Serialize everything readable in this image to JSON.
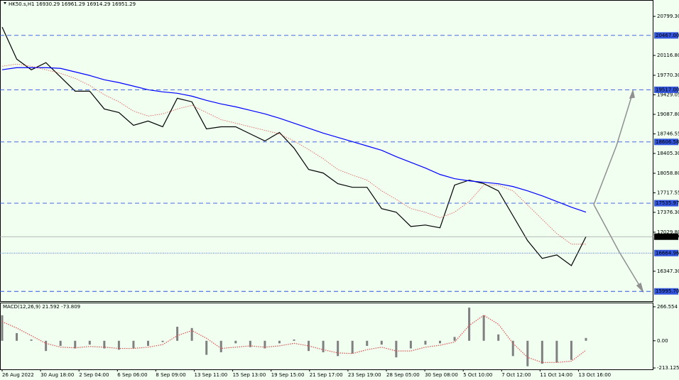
{
  "chart_data": [
    {
      "type": "line",
      "title": "HK50.s,H1  16930.29 16961.29 16914.29 16951.29",
      "x_labels": [
        "26 Aug 2022",
        "30 Aug 18:00",
        "2 Sep 04:00",
        "6 Sep 06:00",
        "8 Sep 09:00",
        "13 Sep 11:00",
        "15 Sep 13:00",
        "19 Sep 15:00",
        "21 Sep 17:00",
        "23 Sep 19:00",
        "28 Sep 05:00",
        "30 Sep 08:00",
        "5 Oct 10:00",
        "7 Oct 12:00",
        "11 Oct 14:00",
        "13 Oct 16:00"
      ],
      "series": [
        {
          "color": "#000000",
          "values": [
            20613,
            20053,
            19866,
            19991,
            19742,
            19493,
            19493,
            19182,
            19120,
            18896,
            18971,
            18871,
            19369,
            19307,
            18834,
            18871,
            18871,
            18747,
            18623,
            18772,
            18498,
            18125,
            18063,
            17877,
            17814,
            17814,
            17441,
            17379,
            17130,
            17155,
            17106,
            17852,
            17939,
            17877,
            17752,
            17317,
            16882,
            16571,
            16633,
            16446,
            16951
          ]
        },
        {
          "color": "#0000ff",
          "values": [
            19867,
            19904,
            19904,
            19904,
            19891,
            19829,
            19767,
            19692,
            19643,
            19581,
            19518,
            19481,
            19456,
            19406,
            19332,
            19270,
            19220,
            19158,
            19096,
            19021,
            18934,
            18847,
            18760,
            18685,
            18611,
            18536,
            18461,
            18349,
            18250,
            18150,
            18038,
            17964,
            17926,
            17901,
            17876,
            17827,
            17752,
            17665,
            17566,
            17466,
            17379
          ]
        },
        {
          "color": "#e05050",
          "dashed": true,
          "values": [
            19929,
            19966,
            19929,
            19867,
            19804,
            19717,
            19593,
            19431,
            19307,
            19145,
            19058,
            19096,
            19182,
            19245,
            19120,
            18996,
            18934,
            18871,
            18809,
            18747,
            18623,
            18474,
            18312,
            18125,
            18026,
            17939,
            17752,
            17603,
            17442,
            17379,
            17280,
            17379,
            17566,
            17852,
            17852,
            17752,
            17504,
            17255,
            17006,
            16820,
            16820
          ]
        }
      ],
      "ylim": [
        15825,
        21073
      ],
      "yticks": [
        {
          "value": 20799.3,
          "label": "20799.30"
        },
        {
          "value": 20116.8,
          "label": "20116.80"
        },
        {
          "value": 19770.3,
          "label": "19770.30"
        },
        {
          "value": 19429.05,
          "label": "19429.05"
        },
        {
          "value": 19087.8,
          "label": "19087.80"
        },
        {
          "value": 18746.55,
          "label": "18746.55"
        },
        {
          "value": 18405.3,
          "label": "18405.30"
        },
        {
          "value": 18058.8,
          "label": "18058.80"
        },
        {
          "value": 17717.55,
          "label": "17717.55"
        },
        {
          "value": 17376.3,
          "label": "17376.30"
        },
        {
          "value": 17029.8,
          "label": "17029.80"
        },
        {
          "value": 16347.3,
          "label": "16347.30"
        }
      ],
      "levels": [
        {
          "value": 20467.0,
          "label": "20467.00"
        },
        {
          "value": 19517.0,
          "label": "19517.00"
        },
        {
          "value": 18606.58,
          "label": "18606.58"
        },
        {
          "value": 17535.97,
          "label": "17535.97"
        },
        {
          "value": 16664.96,
          "label": "16664.96",
          "dotted": true
        },
        {
          "value": 15995.7,
          "label": "15995.70"
        }
      ],
      "current": {
        "value": 16951.29,
        "label": "16951.29"
      }
    },
    {
      "type": "bar",
      "title": "MACD(12,26,9) 21.592 -73.809",
      "series": [
        {
          "color": "#808080",
          "values": [
            200,
            60,
            10,
            -80,
            -40,
            -60,
            -30,
            -60,
            -70,
            -60,
            -40,
            -10,
            110,
            100,
            -110,
            -90,
            -20,
            -50,
            -60,
            -20,
            10,
            -80,
            -90,
            -120,
            -100,
            -40,
            -30,
            -130,
            -60,
            -30,
            -20,
            30,
            260,
            200,
            50,
            -120,
            -200,
            -180,
            -170,
            -150,
            22
          ]
        },
        {
          "color": "#e05050",
          "type": "line",
          "values": [
            150,
            100,
            40,
            -20,
            -50,
            -55,
            -45,
            -50,
            -60,
            -60,
            -50,
            -30,
            40,
            80,
            20,
            -60,
            -50,
            -40,
            -50,
            -40,
            -20,
            -40,
            -70,
            -95,
            -100,
            -70,
            -50,
            -80,
            -80,
            -50,
            -35,
            -10,
            120,
            200,
            130,
            -20,
            -130,
            -170,
            -170,
            -160,
            -74
          ]
        }
      ],
      "ylim": [
        -224,
        294
      ],
      "yticks": [
        {
          "value": 266.554,
          "label": "266.554"
        },
        {
          "value": 0,
          "label": "0.00"
        },
        {
          "value": -213.125,
          "label": "-213.125"
        }
      ]
    }
  ]
}
